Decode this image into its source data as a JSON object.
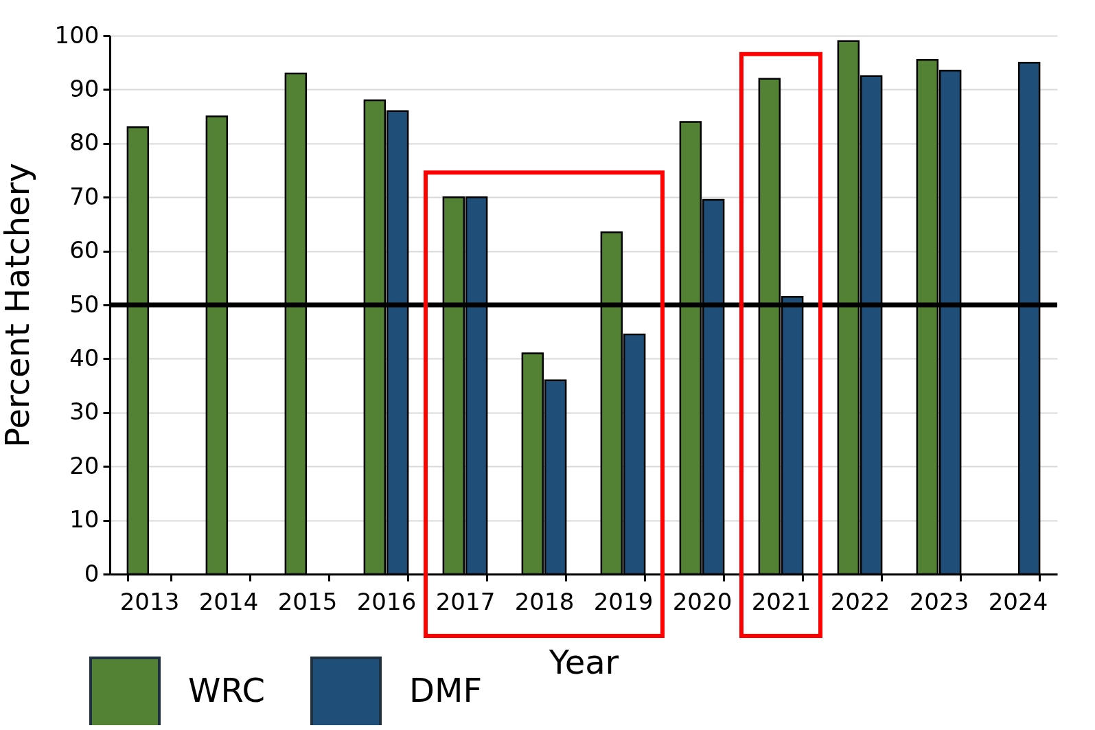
{
  "chart_data": {
    "type": "bar",
    "xlabel": "Year",
    "ylabel": "Percent Hatchery",
    "categories": [
      "2013",
      "2014",
      "2015",
      "2016",
      "2017",
      "2018",
      "2019",
      "2020",
      "2021",
      "2022",
      "2023",
      "2024"
    ],
    "series": [
      {
        "name": "WRC",
        "color": "#548235",
        "values": [
          83,
          85,
          93,
          88,
          70,
          41,
          63.5,
          84,
          92,
          99,
          95.5,
          null
        ]
      },
      {
        "name": "DMF",
        "color": "#1f4e79",
        "values": [
          null,
          null,
          null,
          86,
          70,
          36,
          44.5,
          69.5,
          51.5,
          92.5,
          93.5,
          95
        ]
      }
    ],
    "ylim": [
      0,
      100
    ],
    "yticks": [
      0,
      10,
      20,
      30,
      40,
      50,
      60,
      70,
      80,
      90,
      100
    ],
    "grid": "y",
    "legend": "bottom left",
    "ref_lines": [
      {
        "axis": "y",
        "value": 50,
        "color": "#000000"
      }
    ]
  }
}
